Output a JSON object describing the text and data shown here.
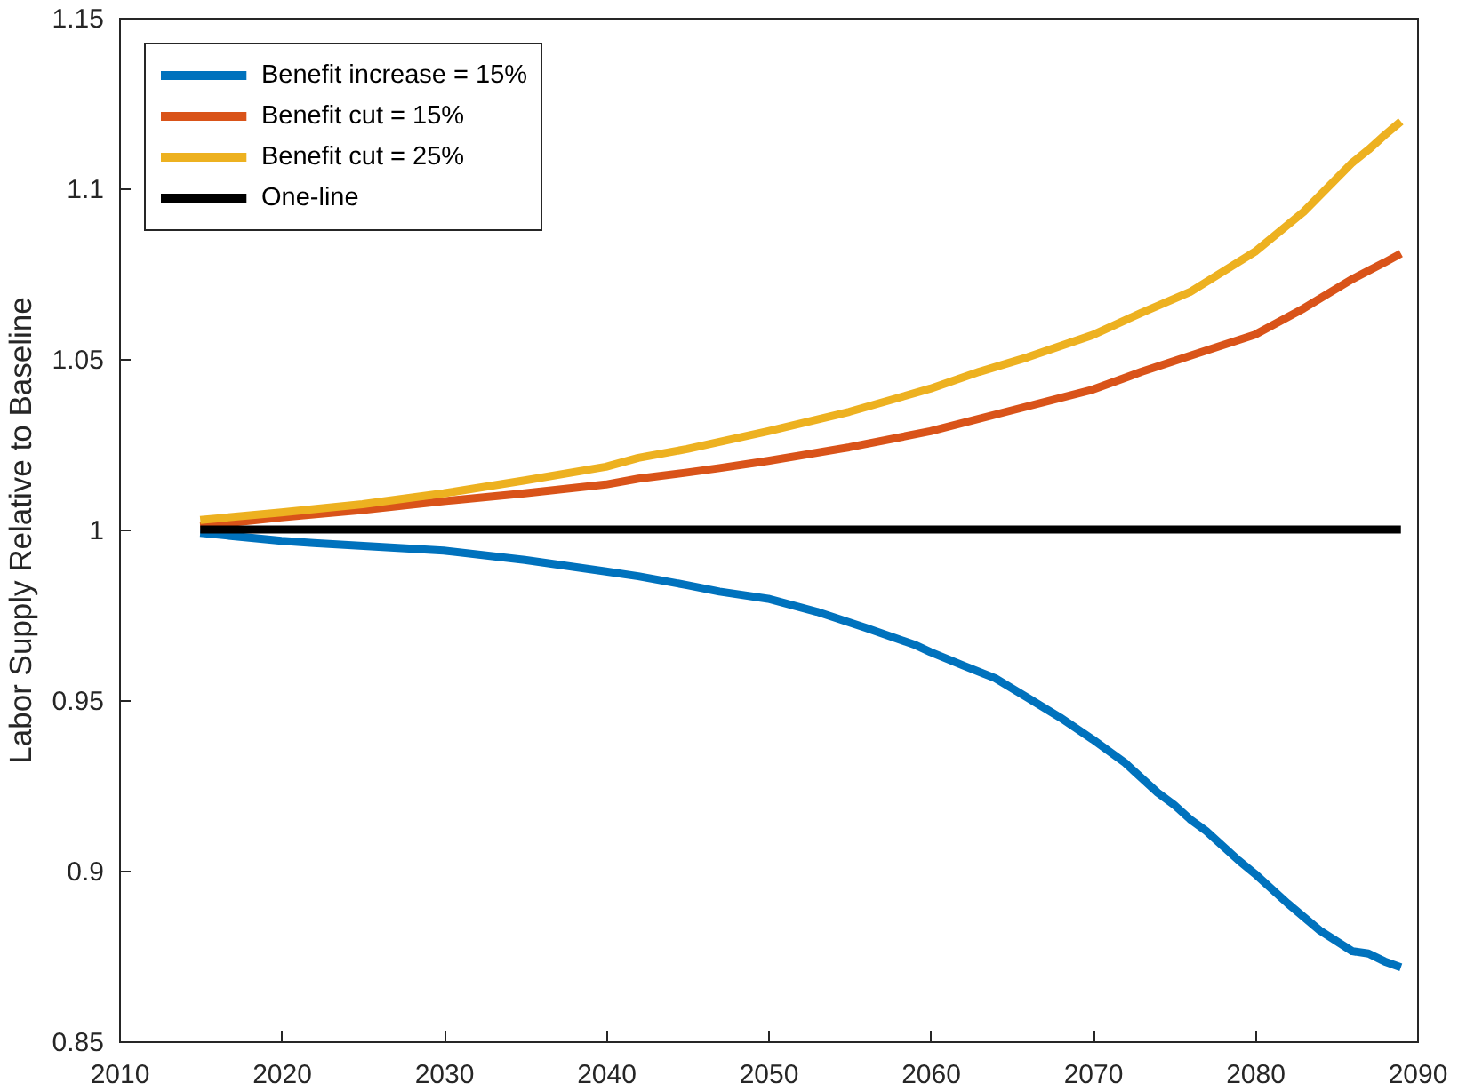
{
  "chart_data": {
    "type": "line",
    "ylabel": "Labor Supply Relative to Baseline",
    "xlim": [
      2010,
      2090
    ],
    "xticks": [
      2010,
      2020,
      2030,
      2040,
      2050,
      2060,
      2070,
      2080,
      2090
    ],
    "ylim": [
      0.85,
      1.15
    ],
    "yticks": [
      0.85,
      0.9,
      0.95,
      1,
      1.05,
      1.1,
      1.15
    ],
    "grid": false,
    "legend": "top left",
    "series": [
      {
        "name": "Benefit increase = 15%",
        "color": "#0072bd",
        "x": [
          2015,
          2020,
          2022,
          2030,
          2035,
          2040,
          2042,
          2045,
          2047,
          2050,
          2053,
          2056,
          2059,
          2060,
          2062,
          2064,
          2066,
          2068,
          2070,
          2072,
          2074,
          2075,
          2076,
          2077,
          2079,
          2080,
          2082,
          2084,
          2086,
          2087,
          2088,
          2089
        ],
        "values": [
          0.999,
          0.9967,
          0.996,
          0.9938,
          0.9911,
          0.9877,
          0.9863,
          0.9837,
          0.9818,
          0.9797,
          0.9759,
          0.9712,
          0.9663,
          0.9641,
          0.9602,
          0.9564,
          0.9507,
          0.9449,
          0.9385,
          0.9316,
          0.9229,
          0.9194,
          0.9151,
          0.9116,
          0.903,
          0.8991,
          0.8905,
          0.8825,
          0.8764,
          0.8757,
          0.8734,
          0.8717
        ]
      },
      {
        "name": "Benefit cut = 15%",
        "color": "#d95319",
        "x": [
          2015,
          2020,
          2025,
          2030,
          2035,
          2040,
          2042,
          2045,
          2047,
          2050,
          2055,
          2060,
          2065,
          2070,
          2073,
          2076,
          2080,
          2083,
          2086,
          2088,
          2089
        ],
        "values": [
          1.001,
          1.0036,
          1.0057,
          1.0083,
          1.0106,
          1.0132,
          1.0149,
          1.0167,
          1.018,
          1.0201,
          1.0241,
          1.0288,
          1.0349,
          1.041,
          1.0462,
          1.0509,
          1.0571,
          1.0648,
          1.0734,
          1.0783,
          1.0809
        ]
      },
      {
        "name": "Benefit cut = 25%",
        "color": "#edb120",
        "x": [
          2015,
          2020,
          2025,
          2030,
          2035,
          2040,
          2042,
          2045,
          2047,
          2050,
          2055,
          2060,
          2063,
          2066,
          2070,
          2073,
          2076,
          2080,
          2083,
          2086,
          2087,
          2088,
          2089
        ],
        "values": [
          1.0028,
          1.005,
          1.0074,
          1.0106,
          1.0144,
          1.0184,
          1.021,
          1.0236,
          1.0257,
          1.0288,
          1.0345,
          1.0413,
          1.0462,
          1.0505,
          1.057,
          1.0635,
          1.0696,
          1.0814,
          1.0931,
          1.1075,
          1.1113,
          1.1156,
          1.1196
        ]
      },
      {
        "name": "One-line",
        "color": "#000000",
        "x": [
          2015,
          2089
        ],
        "values": [
          1,
          1
        ]
      }
    ]
  }
}
